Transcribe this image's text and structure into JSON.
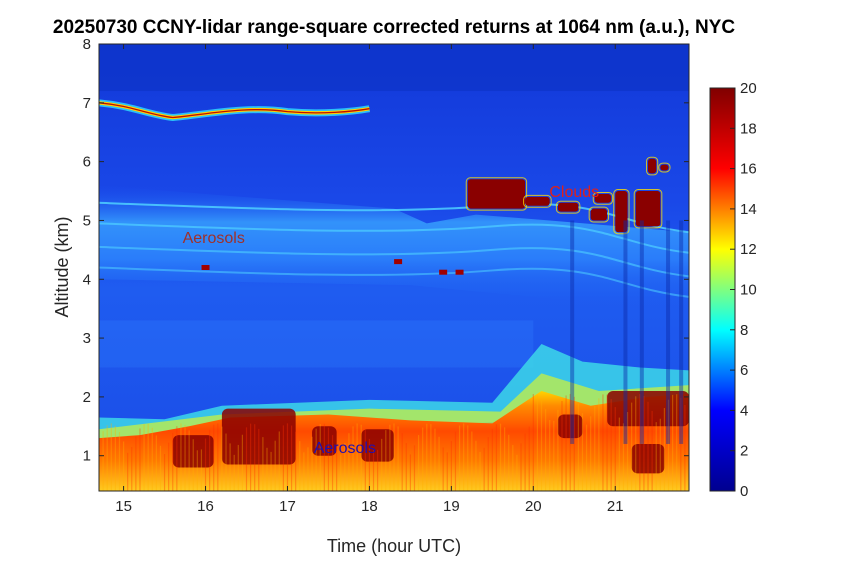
{
  "chart_data": {
    "type": "heatmap",
    "title": "20250730 CCNY-lidar range-square corrected returns at 1064 nm (a.u.), NYC",
    "xlabel": "Time (hour UTC)",
    "ylabel": "Altitude (km)",
    "xlim": [
      14.7,
      21.9
    ],
    "ylim": [
      0.4,
      8
    ],
    "x_ticks": [
      15,
      16,
      17,
      18,
      19,
      20,
      21
    ],
    "y_ticks": [
      1,
      2,
      3,
      4,
      5,
      6,
      7,
      8
    ],
    "colorbar": {
      "colormap": "jet",
      "range": [
        0,
        20
      ],
      "ticks": [
        0,
        2,
        4,
        6,
        8,
        10,
        12,
        14,
        16,
        18,
        20
      ]
    },
    "colormap_stops": [
      "#00008f",
      "#0000ff",
      "#00ffff",
      "#ffff00",
      "#ff0000",
      "#800000"
    ],
    "annotations": [
      {
        "text": "Clouds",
        "x": 20.5,
        "y": 5.5,
        "color": "#e0201a"
      },
      {
        "text": "Aerosols",
        "x": 16.1,
        "y": 4.72,
        "color": "#a0302a"
      },
      {
        "text": "Aerosols",
        "x": 17.7,
        "y": 1.15,
        "color": "#2010b0"
      }
    ],
    "features": [
      {
        "name": "cloud layer near 7 km",
        "x_range": [
          14.7,
          18.0
        ],
        "y": 6.85
      },
      {
        "name": "aerosol layer",
        "x_range": [
          14.7,
          21.9
        ],
        "y_range": [
          3.8,
          5.6
        ]
      },
      {
        "name": "boundary layer aerosols",
        "x_range": [
          14.7,
          21.9
        ],
        "y_range": [
          0.4,
          2.2
        ]
      },
      {
        "name": "broken clouds",
        "x_range": [
          19.2,
          21.6
        ],
        "y_range": [
          4.7,
          6.0
        ]
      }
    ]
  }
}
